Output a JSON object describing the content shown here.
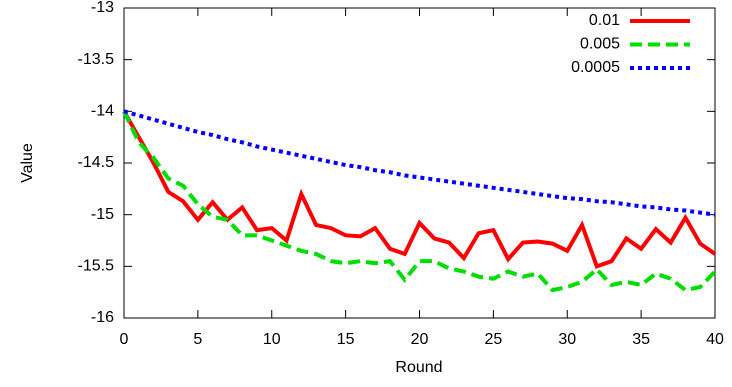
{
  "chart_data": {
    "type": "line",
    "xlabel": "Round",
    "ylabel": "Value",
    "x": [
      0,
      1,
      2,
      3,
      4,
      5,
      6,
      7,
      8,
      9,
      10,
      11,
      12,
      13,
      14,
      15,
      16,
      17,
      18,
      19,
      20,
      21,
      22,
      23,
      24,
      25,
      26,
      27,
      28,
      29,
      30,
      31,
      32,
      33,
      34,
      35,
      36,
      37,
      38,
      39,
      40
    ],
    "series": [
      {
        "name": "0.01",
        "color": "#ff0000",
        "dash": "solid",
        "values": [
          -14,
          -14.25,
          -14.5,
          -14.78,
          -14.87,
          -15.05,
          -14.88,
          -15.05,
          -14.93,
          -15.15,
          -15.13,
          -15.25,
          -14.8,
          -15.1,
          -15.13,
          -15.2,
          -15.21,
          -15.13,
          -15.33,
          -15.38,
          -15.08,
          -15.23,
          -15.27,
          -15.42,
          -15.18,
          -15.15,
          -15.43,
          -15.27,
          -15.26,
          -15.28,
          -15.35,
          -15.1,
          -15.5,
          -15.45,
          -15.23,
          -15.33,
          -15.14,
          -15.27,
          -15.03,
          -15.28,
          -15.38
        ]
      },
      {
        "name": "0.005",
        "color": "#00dd00",
        "dash": "dashed",
        "values": [
          -14,
          -14.3,
          -14.45,
          -14.65,
          -14.72,
          -14.9,
          -15.02,
          -15.05,
          -15.2,
          -15.2,
          -15.25,
          -15.3,
          -15.35,
          -15.38,
          -15.45,
          -15.47,
          -15.45,
          -15.47,
          -15.45,
          -15.63,
          -15.45,
          -15.45,
          -15.52,
          -15.55,
          -15.6,
          -15.62,
          -15.55,
          -15.6,
          -15.57,
          -15.73,
          -15.7,
          -15.65,
          -15.53,
          -15.68,
          -15.65,
          -15.68,
          -15.57,
          -15.62,
          -15.73,
          -15.7,
          -15.55
        ]
      },
      {
        "name": "0.0005",
        "color": "#0000ff",
        "dash": "dotted",
        "values": [
          -14,
          -14.04,
          -14.08,
          -14.12,
          -14.16,
          -14.2,
          -14.23,
          -14.27,
          -14.3,
          -14.34,
          -14.37,
          -14.4,
          -14.43,
          -14.46,
          -14.49,
          -14.52,
          -14.54,
          -14.57,
          -14.59,
          -14.62,
          -14.64,
          -14.66,
          -14.68,
          -14.7,
          -14.72,
          -14.74,
          -14.76,
          -14.78,
          -14.8,
          -14.82,
          -14.84,
          -14.85,
          -14.87,
          -14.88,
          -14.9,
          -14.92,
          -14.93,
          -14.95,
          -14.96,
          -14.98,
          -15
        ]
      }
    ],
    "xlim": [
      0,
      40
    ],
    "xticks": [
      0,
      5,
      10,
      15,
      20,
      25,
      30,
      35,
      40
    ],
    "ylim": [
      -16,
      -13
    ],
    "yticks": [
      -13,
      -13.5,
      -14,
      -14.5,
      -15,
      -15.5,
      -16
    ],
    "legend": "top-right"
  }
}
